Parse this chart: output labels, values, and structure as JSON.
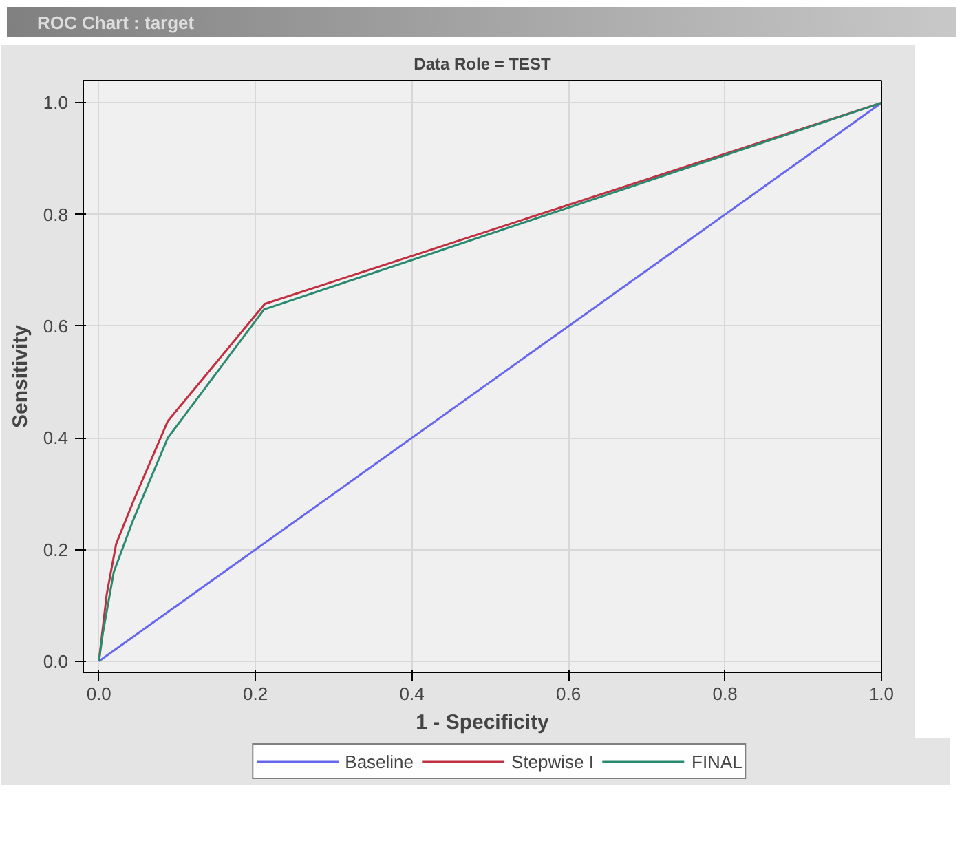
{
  "chart_data": {
    "type": "line",
    "title": "ROC Chart : target",
    "subtitle": "Data Role = TEST",
    "xlabel": "1 - Specificity",
    "ylabel": "Sensitivity",
    "xlim": [
      -0.02,
      1.0
    ],
    "ylim": [
      -0.02,
      1.04
    ],
    "xticks": [
      {
        "value": 0,
        "label": "0.0"
      },
      0.2,
      0.4,
      0.6,
      0.8,
      {
        "value": 1,
        "label": "1.0"
      }
    ],
    "yticks": [
      {
        "value": 0,
        "label": "0.0"
      },
      0.2,
      0.4,
      0.6,
      0.8,
      {
        "value": 1,
        "label": "1.0"
      }
    ],
    "grid": true,
    "legend": "bottom",
    "marker": "none",
    "line_style": "solid",
    "series": [
      {
        "name": "Baseline",
        "color": "#6666ee",
        "x": [
          0,
          1
        ],
        "values": [
          0,
          1
        ]
      },
      {
        "name": "Stepwise I",
        "color": "#c03040",
        "x": [
          0,
          0.01,
          0.022,
          0.045,
          0.088,
          0.212,
          1
        ],
        "values": [
          0,
          0.12,
          0.21,
          0.29,
          0.43,
          0.64,
          1
        ]
      },
      {
        "name": "FINAL",
        "color": "#2a8a70",
        "x": [
          0,
          0.005,
          0.019,
          0.043,
          0.088,
          0.211,
          1
        ],
        "values": [
          0,
          0.05,
          0.16,
          0.25,
          0.4,
          0.63,
          1
        ]
      }
    ]
  }
}
